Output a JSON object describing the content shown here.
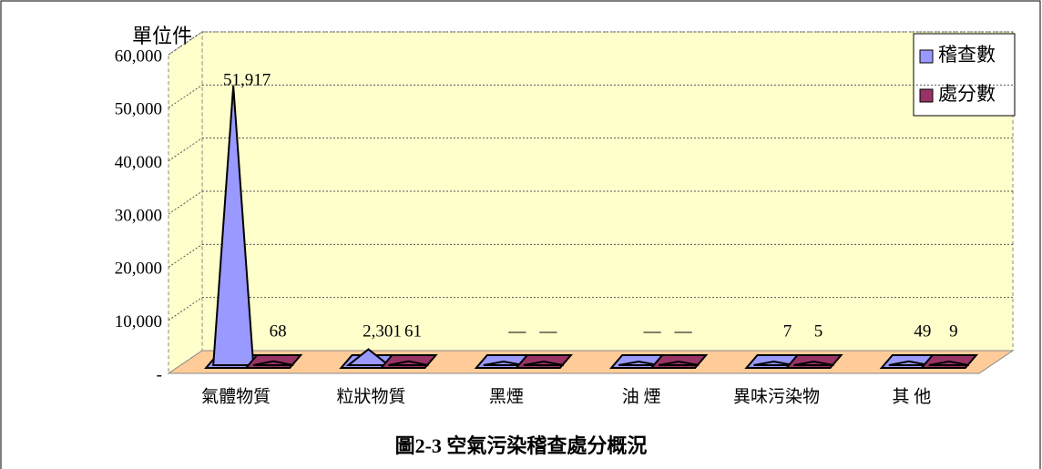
{
  "chart_data": {
    "type": "cone3d",
    "title": "圖2-3 空氣污染稽查處分概況",
    "y_axis_label": "單位件",
    "categories": [
      "氣體物質",
      "粒狀物質",
      "黑煙",
      "油 煙",
      "異味污染物",
      "其 他"
    ],
    "series": [
      {
        "name": "稽查數",
        "color": "#9999ff",
        "values": [
          51917,
          2301,
          0,
          0,
          7,
          49
        ],
        "value_labels": [
          "51,917",
          "2,301",
          "—",
          "—",
          "7",
          "49"
        ]
      },
      {
        "name": "處分數",
        "color": "#993366",
        "values": [
          68,
          61,
          0,
          0,
          5,
          9
        ],
        "value_labels": [
          "68",
          "61",
          "—",
          "—",
          "5",
          "9"
        ]
      }
    ],
    "ylim": [
      0,
      60000
    ],
    "yticks": [
      {
        "value": 0,
        "label": "-"
      },
      {
        "value": 10000,
        "label": "10,000"
      },
      {
        "value": 20000,
        "label": "20,000"
      },
      {
        "value": 30000,
        "label": "30,000"
      },
      {
        "value": 40000,
        "label": "40,000"
      },
      {
        "value": 50000,
        "label": "50,000"
      },
      {
        "value": 60000,
        "label": "60,000"
      }
    ],
    "grid": true,
    "legend_position": "top-right"
  }
}
